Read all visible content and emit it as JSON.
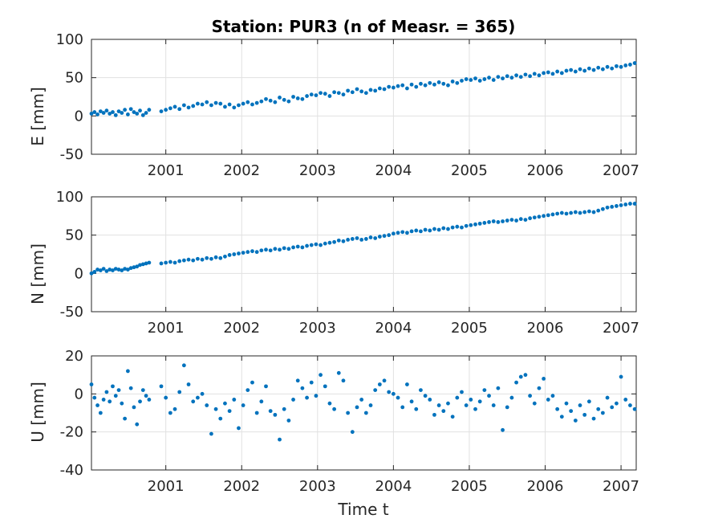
{
  "title": "Station: PUR3 (n of Measr. = 365)",
  "chart_data": [
    {
      "type": "scatter",
      "panel": "E",
      "ylabel": "E [mm]",
      "xlabel": "",
      "xlim": [
        2000.02,
        2007.2
      ],
      "ylim": [
        -50,
        100
      ],
      "yticks": [
        100,
        50,
        0,
        -50
      ],
      "xticks": [
        2001,
        2002,
        2003,
        2004,
        2005,
        2006,
        2007
      ],
      "grid": true,
      "color": "#0072BD",
      "series": [
        {
          "x": [
            2000.02,
            2000.06,
            2000.1,
            2000.14,
            2000.18,
            2000.22,
            2000.26,
            2000.3,
            2000.34,
            2000.38,
            2000.42,
            2000.46,
            2000.5,
            2000.54,
            2000.58,
            2000.62,
            2000.66,
            2000.7,
            2000.74,
            2000.78,
            2000.94,
            2001.0,
            2001.06,
            2001.12,
            2001.18,
            2001.24,
            2001.3,
            2001.36,
            2001.42,
            2001.48,
            2001.54,
            2001.6,
            2001.66,
            2001.72,
            2001.78,
            2001.84,
            2001.9,
            2001.96,
            2002.02,
            2002.08,
            2002.14,
            2002.2,
            2002.26,
            2002.32,
            2002.38,
            2002.44,
            2002.5,
            2002.56,
            2002.62,
            2002.68,
            2002.74,
            2002.8,
            2002.86,
            2002.92,
            2002.98,
            2003.04,
            2003.1,
            2003.16,
            2003.22,
            2003.28,
            2003.34,
            2003.4,
            2003.46,
            2003.52,
            2003.58,
            2003.64,
            2003.7,
            2003.76,
            2003.82,
            2003.88,
            2003.94,
            2004.0,
            2004.06,
            2004.12,
            2004.18,
            2004.24,
            2004.3,
            2004.36,
            2004.42,
            2004.48,
            2004.54,
            2004.6,
            2004.66,
            2004.72,
            2004.78,
            2004.84,
            2004.9,
            2004.96,
            2005.02,
            2005.08,
            2005.14,
            2005.2,
            2005.26,
            2005.32,
            2005.38,
            2005.44,
            2005.5,
            2005.56,
            2005.62,
            2005.68,
            2005.74,
            2005.8,
            2005.86,
            2005.92,
            2005.98,
            2006.04,
            2006.1,
            2006.16,
            2006.22,
            2006.28,
            2006.34,
            2006.4,
            2006.46,
            2006.52,
            2006.58,
            2006.64,
            2006.7,
            2006.76,
            2006.82,
            2006.88,
            2006.94,
            2007.0,
            2007.06,
            2007.12,
            2007.18
          ],
          "y": [
            3,
            5,
            2,
            6,
            4,
            7,
            3,
            5,
            1,
            6,
            4,
            8,
            2,
            9,
            5,
            3,
            7,
            1,
            4,
            8,
            6,
            8,
            10,
            12,
            9,
            14,
            11,
            13,
            16,
            15,
            18,
            14,
            17,
            16,
            12,
            15,
            11,
            14,
            16,
            18,
            15,
            17,
            19,
            22,
            20,
            18,
            24,
            21,
            19,
            25,
            23,
            22,
            26,
            28,
            27,
            30,
            29,
            26,
            31,
            30,
            28,
            33,
            31,
            35,
            32,
            30,
            34,
            33,
            36,
            35,
            38,
            37,
            39,
            40,
            36,
            41,
            38,
            42,
            40,
            43,
            41,
            44,
            42,
            40,
            45,
            43,
            46,
            48,
            47,
            49,
            46,
            48,
            50,
            47,
            51,
            49,
            52,
            50,
            53,
            51,
            54,
            52,
            55,
            53,
            56,
            57,
            55,
            58,
            56,
            59,
            60,
            58,
            61,
            59,
            62,
            60,
            63,
            61,
            64,
            62,
            65,
            64,
            66,
            67,
            69
          ]
        }
      ]
    },
    {
      "type": "scatter",
      "panel": "N",
      "ylabel": "N [mm]",
      "xlabel": "",
      "xlim": [
        2000.02,
        2007.2
      ],
      "ylim": [
        -50,
        100
      ],
      "yticks": [
        100,
        50,
        0,
        -50
      ],
      "xticks": [
        2001,
        2002,
        2003,
        2004,
        2005,
        2006,
        2007
      ],
      "grid": true,
      "color": "#0072BD",
      "series": [
        {
          "x": [
            2000.02,
            2000.06,
            2000.1,
            2000.14,
            2000.18,
            2000.22,
            2000.26,
            2000.3,
            2000.34,
            2000.38,
            2000.42,
            2000.46,
            2000.5,
            2000.54,
            2000.58,
            2000.62,
            2000.66,
            2000.7,
            2000.74,
            2000.78,
            2000.94,
            2001.0,
            2001.06,
            2001.12,
            2001.18,
            2001.24,
            2001.3,
            2001.36,
            2001.42,
            2001.48,
            2001.54,
            2001.6,
            2001.66,
            2001.72,
            2001.78,
            2001.84,
            2001.9,
            2001.96,
            2002.02,
            2002.08,
            2002.14,
            2002.2,
            2002.26,
            2002.32,
            2002.38,
            2002.44,
            2002.5,
            2002.56,
            2002.62,
            2002.68,
            2002.74,
            2002.8,
            2002.86,
            2002.92,
            2002.98,
            2003.04,
            2003.1,
            2003.16,
            2003.22,
            2003.28,
            2003.34,
            2003.4,
            2003.46,
            2003.52,
            2003.58,
            2003.64,
            2003.7,
            2003.76,
            2003.82,
            2003.88,
            2003.94,
            2004.0,
            2004.06,
            2004.12,
            2004.18,
            2004.24,
            2004.3,
            2004.36,
            2004.42,
            2004.48,
            2004.54,
            2004.6,
            2004.66,
            2004.72,
            2004.78,
            2004.84,
            2004.9,
            2004.96,
            2005.02,
            2005.08,
            2005.14,
            2005.2,
            2005.26,
            2005.32,
            2005.38,
            2005.44,
            2005.5,
            2005.56,
            2005.62,
            2005.68,
            2005.74,
            2005.8,
            2005.86,
            2005.92,
            2005.98,
            2006.04,
            2006.1,
            2006.16,
            2006.22,
            2006.28,
            2006.34,
            2006.4,
            2006.46,
            2006.52,
            2006.58,
            2006.64,
            2006.7,
            2006.76,
            2006.82,
            2006.88,
            2006.94,
            2007.0,
            2007.06,
            2007.12,
            2007.18
          ],
          "y": [
            0,
            2,
            5,
            4,
            6,
            3,
            5,
            4,
            6,
            5,
            4,
            6,
            5,
            7,
            8,
            9,
            11,
            12,
            13,
            14,
            13,
            14,
            15,
            14,
            16,
            17,
            18,
            17,
            19,
            18,
            20,
            19,
            21,
            20,
            22,
            24,
            25,
            26,
            27,
            28,
            29,
            28,
            30,
            31,
            30,
            32,
            31,
            33,
            32,
            34,
            35,
            34,
            36,
            37,
            38,
            37,
            39,
            40,
            41,
            43,
            42,
            44,
            45,
            46,
            44,
            45,
            47,
            46,
            48,
            49,
            50,
            52,
            53,
            54,
            53,
            55,
            56,
            55,
            57,
            56,
            58,
            57,
            59,
            58,
            60,
            61,
            60,
            62,
            63,
            64,
            65,
            66,
            67,
            68,
            67,
            68,
            69,
            70,
            69,
            71,
            70,
            72,
            73,
            74,
            75,
            76,
            77,
            78,
            79,
            78,
            79,
            80,
            79,
            80,
            81,
            80,
            82,
            84,
            86,
            87,
            88,
            89,
            90,
            91,
            91
          ]
        }
      ]
    },
    {
      "type": "scatter",
      "panel": "U",
      "ylabel": "U [mm]",
      "xlabel": "Time t",
      "xlim": [
        2000.02,
        2007.2
      ],
      "ylim": [
        -40,
        20
      ],
      "yticks": [
        20,
        0,
        -20,
        -40
      ],
      "xticks": [
        2001,
        2002,
        2003,
        2004,
        2005,
        2006,
        2007
      ],
      "grid": true,
      "color": "#0072BD",
      "series": [
        {
          "x": [
            2000.02,
            2000.06,
            2000.1,
            2000.14,
            2000.18,
            2000.22,
            2000.26,
            2000.3,
            2000.34,
            2000.38,
            2000.42,
            2000.46,
            2000.5,
            2000.54,
            2000.58,
            2000.62,
            2000.66,
            2000.7,
            2000.74,
            2000.78,
            2000.94,
            2001.0,
            2001.06,
            2001.12,
            2001.18,
            2001.24,
            2001.3,
            2001.36,
            2001.42,
            2001.48,
            2001.54,
            2001.6,
            2001.66,
            2001.72,
            2001.78,
            2001.84,
            2001.9,
            2001.96,
            2002.02,
            2002.08,
            2002.14,
            2002.2,
            2002.26,
            2002.32,
            2002.38,
            2002.44,
            2002.5,
            2002.56,
            2002.62,
            2002.68,
            2002.74,
            2002.8,
            2002.86,
            2002.92,
            2002.98,
            2003.04,
            2003.1,
            2003.16,
            2003.22,
            2003.28,
            2003.34,
            2003.4,
            2003.46,
            2003.52,
            2003.58,
            2003.64,
            2003.7,
            2003.76,
            2003.82,
            2003.88,
            2003.94,
            2004.0,
            2004.06,
            2004.12,
            2004.18,
            2004.24,
            2004.3,
            2004.36,
            2004.42,
            2004.48,
            2004.54,
            2004.6,
            2004.66,
            2004.72,
            2004.78,
            2004.84,
            2004.9,
            2004.96,
            2005.02,
            2005.08,
            2005.14,
            2005.2,
            2005.26,
            2005.32,
            2005.38,
            2005.44,
            2005.5,
            2005.56,
            2005.62,
            2005.68,
            2005.74,
            2005.8,
            2005.86,
            2005.92,
            2005.98,
            2006.04,
            2006.1,
            2006.16,
            2006.22,
            2006.28,
            2006.34,
            2006.4,
            2006.46,
            2006.52,
            2006.58,
            2006.64,
            2006.7,
            2006.76,
            2006.82,
            2006.88,
            2006.94,
            2007.0,
            2007.06,
            2007.12,
            2007.18
          ],
          "y": [
            5,
            -2,
            -6,
            -10,
            -3,
            1,
            -4,
            4,
            -1,
            2,
            -5,
            -13,
            12,
            3,
            -7,
            -16,
            -4,
            2,
            -1,
            -3,
            4,
            -2,
            -10,
            -8,
            1,
            15,
            5,
            -4,
            -2,
            0,
            -6,
            -21,
            -8,
            -13,
            -5,
            -9,
            -3,
            -18,
            -6,
            2,
            6,
            -10,
            -4,
            4,
            -9,
            -11,
            -24,
            -8,
            -14,
            -3,
            7,
            3,
            -2,
            6,
            -1,
            10,
            4,
            -5,
            -8,
            11,
            7,
            -10,
            -20,
            -7,
            -3,
            -10,
            -6,
            2,
            5,
            7,
            1,
            0,
            -2,
            -7,
            5,
            -4,
            -8,
            2,
            -1,
            -3,
            -11,
            -6,
            -9,
            -5,
            -12,
            -2,
            1,
            -6,
            -3,
            -8,
            -4,
            2,
            -1,
            -6,
            3,
            -19,
            -7,
            -2,
            6,
            9,
            10,
            -1,
            -5,
            3,
            8,
            -3,
            -1,
            -8,
            -12,
            -5,
            -9,
            -14,
            -6,
            -11,
            -4,
            -13,
            -8,
            -10,
            -2,
            -7,
            -5,
            9,
            -3,
            -6,
            -8
          ]
        }
      ]
    }
  ]
}
